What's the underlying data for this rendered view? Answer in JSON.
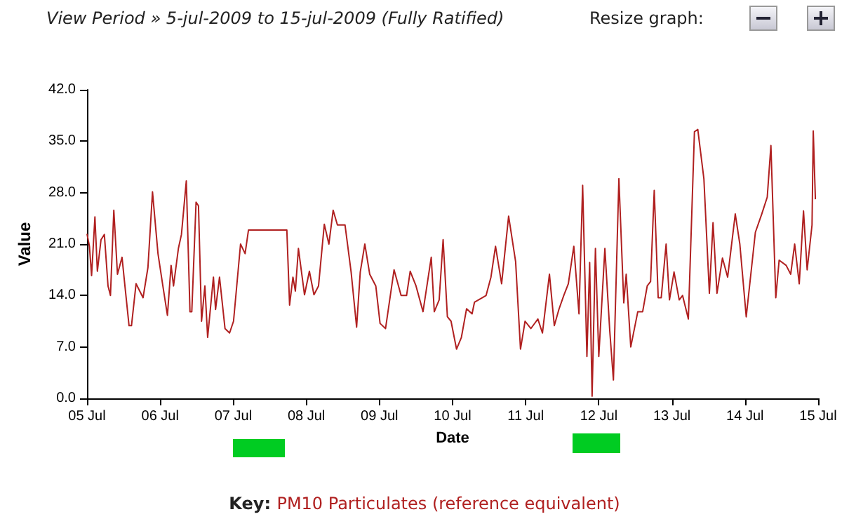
{
  "chart_data": {
    "type": "line",
    "title": "View Period » 5-jul-2009 to 15-jul-2009 (Fully Ratified)",
    "annotations": [
      "Resize graph:"
    ],
    "xlabel": "Date",
    "ylabel": "Value",
    "legend": "bottom",
    "legend_title": "Key:",
    "grid": false,
    "marker": "none",
    "line_style": "solid",
    "xlim": [
      "2009-07-05",
      "2009-07-15"
    ],
    "xticks": [
      {
        "value": "2009-07-05",
        "label": "05 Jul"
      },
      {
        "value": "2009-07-06",
        "label": "06 Jul"
      },
      {
        "value": "2009-07-07",
        "label": "07 Jul"
      },
      {
        "value": "2009-07-08",
        "label": "08 Jul"
      },
      {
        "value": "2009-07-09",
        "label": "09 Jul"
      },
      {
        "value": "2009-07-10",
        "label": "10 Jul"
      },
      {
        "value": "2009-07-11",
        "label": "11 Jul"
      },
      {
        "value": "2009-07-12",
        "label": "12 Jul"
      },
      {
        "value": "2009-07-13",
        "label": "13 Jul"
      },
      {
        "value": "2009-07-14",
        "label": "14 Jul"
      },
      {
        "value": "2009-07-15",
        "label": "15 Jul"
      }
    ],
    "ylim": [
      0,
      42
    ],
    "yticks": [
      {
        "value": 0,
        "label": "0.0"
      },
      {
        "value": 7,
        "label": "7.0"
      },
      {
        "value": 14,
        "label": "14.0"
      },
      {
        "value": 21,
        "label": "21.0"
      },
      {
        "value": 28,
        "label": "28.0"
      },
      {
        "value": 35,
        "label": "35.0"
      },
      {
        "value": 42,
        "label": "42.0"
      }
    ],
    "series": [
      {
        "name": "PM10 Particulates (reference equivalent)",
        "color": "#b02020",
        "x": [
          "2009-07-05T00:00",
          "2009-07-05T00:48",
          "2009-07-05T01:30",
          "2009-07-05T02:36",
          "2009-07-05T03:24",
          "2009-07-05T04:36",
          "2009-07-05T05:42",
          "2009-07-05T06:54",
          "2009-07-05T07:42",
          "2009-07-05T08:48",
          "2009-07-05T10:00",
          "2009-07-05T11:30",
          "2009-07-05T12:18",
          "2009-07-05T13:48",
          "2009-07-05T14:36",
          "2009-07-05T16:06",
          "2009-07-05T18:24",
          "2009-07-05T20:00",
          "2009-07-05T21:30",
          "2009-07-05T23:18",
          "2009-07-06T00:54",
          "2009-07-06T02:24",
          "2009-07-06T03:36",
          "2009-07-06T04:24",
          "2009-07-06T06:00",
          "2009-07-06T07:00",
          "2009-07-06T08:36",
          "2009-07-06T09:48",
          "2009-07-06T10:24",
          "2009-07-06T11:48",
          "2009-07-06T12:36",
          "2009-07-06T13:36",
          "2009-07-06T14:42",
          "2009-07-06T15:36",
          "2009-07-06T17:30",
          "2009-07-06T18:12",
          "2009-07-06T19:30",
          "2009-07-06T21:18",
          "2009-07-06T22:48",
          "2009-07-07T00:06",
          "2009-07-07T02:24",
          "2009-07-07T03:54",
          "2009-07-07T05:00",
          "2009-07-07T17:36",
          "2009-07-07T18:30",
          "2009-07-07T19:36",
          "2009-07-07T20:24",
          "2009-07-07T21:24",
          "2009-07-07T23:24",
          "2009-07-08T01:00",
          "2009-07-08T02:30",
          "2009-07-08T04:00",
          "2009-07-08T05:54",
          "2009-07-08T07:24",
          "2009-07-08T08:48",
          "2009-07-08T10:12",
          "2009-07-08T12:42",
          "2009-07-08T14:42",
          "2009-07-08T16:30",
          "2009-07-08T17:42",
          "2009-07-08T19:12",
          "2009-07-08T20:48",
          "2009-07-08T22:48",
          "2009-07-09T00:12",
          "2009-07-09T02:00",
          "2009-07-09T04:48",
          "2009-07-09T07:06",
          "2009-07-09T08:54",
          "2009-07-09T10:06",
          "2009-07-09T12:00",
          "2009-07-09T14:18",
          "2009-07-09T17:00",
          "2009-07-09T18:00",
          "2009-07-09T19:36",
          "2009-07-09T20:54",
          "2009-07-09T22:18",
          "2009-07-09T23:30",
          "2009-07-10T01:18",
          "2009-07-10T02:54",
          "2009-07-10T04:36",
          "2009-07-10T06:24",
          "2009-07-10T07:12",
          "2009-07-10T11:00",
          "2009-07-10T12:36",
          "2009-07-10T14:06",
          "2009-07-10T16:06",
          "2009-07-10T18:24",
          "2009-07-10T20:42",
          "2009-07-10T22:18",
          "2009-07-10T23:48",
          "2009-07-11T01:42",
          "2009-07-11T04:00",
          "2009-07-11T05:30",
          "2009-07-11T07:48",
          "2009-07-11T09:24",
          "2009-07-11T10:54",
          "2009-07-11T12:30",
          "2009-07-11T14:00",
          "2009-07-11T15:48",
          "2009-07-11T17:30",
          "2009-07-11T18:42",
          "2009-07-11T20:06",
          "2009-07-11T21:00",
          "2009-07-11T21:48",
          "2009-07-11T22:54",
          "2009-07-12T00:00",
          "2009-07-12T02:00",
          "2009-07-12T03:36",
          "2009-07-12T04:48",
          "2009-07-12T06:36",
          "2009-07-12T08:12",
          "2009-07-12T09:00",
          "2009-07-12T10:30",
          "2009-07-12T12:48",
          "2009-07-12T14:24",
          "2009-07-12T15:54",
          "2009-07-12T17:00",
          "2009-07-12T18:12",
          "2009-07-12T19:30",
          "2009-07-12T20:30",
          "2009-07-12T22:06",
          "2009-07-12T23:12",
          "2009-07-13T00:42",
          "2009-07-13T02:24",
          "2009-07-13T03:30",
          "2009-07-13T05:24",
          "2009-07-13T07:24",
          "2009-07-13T08:30",
          "2009-07-13T10:30",
          "2009-07-13T12:18",
          "2009-07-13T13:30",
          "2009-07-13T14:48",
          "2009-07-13T16:36",
          "2009-07-13T18:18",
          "2009-07-13T20:48",
          "2009-07-13T22:18",
          "2009-07-14T00:24",
          "2009-07-14T03:24",
          "2009-07-14T05:30",
          "2009-07-14T07:18",
          "2009-07-14T08:30",
          "2009-07-14T10:06",
          "2009-07-14T11:12",
          "2009-07-14T13:30",
          "2009-07-14T15:00",
          "2009-07-14T16:18",
          "2009-07-14T17:48",
          "2009-07-14T19:12",
          "2009-07-14T20:24",
          "2009-07-14T22:00",
          "2009-07-14T22:24",
          "2009-07-14T23:06"
        ],
        "values": [
          22.4,
          20.7,
          16.7,
          24.7,
          17.3,
          21.6,
          22.3,
          15.3,
          14.0,
          25.6,
          16.9,
          19.2,
          15.9,
          9.9,
          9.9,
          15.6,
          13.7,
          17.8,
          28.1,
          19.7,
          15.3,
          11.3,
          18.1,
          15.3,
          20.4,
          22.3,
          29.6,
          11.8,
          11.8,
          26.7,
          26.2,
          10.5,
          15.3,
          8.3,
          16.5,
          12.1,
          16.5,
          9.5,
          8.9,
          10.5,
          21.0,
          19.7,
          22.9,
          22.9,
          12.7,
          16.5,
          14.6,
          20.4,
          14.1,
          17.3,
          14.1,
          15.3,
          23.7,
          21.0,
          25.6,
          23.6,
          23.6,
          17.2,
          9.7,
          17.2,
          21.0,
          16.9,
          15.3,
          10.2,
          9.5,
          17.5,
          14.0,
          14.0,
          17.3,
          15.3,
          11.8,
          19.2,
          11.8,
          13.4,
          21.6,
          11.1,
          10.5,
          6.7,
          8.3,
          12.2,
          11.5,
          13.1,
          14.0,
          16.5,
          20.7,
          15.6,
          24.8,
          18.6,
          6.7,
          10.5,
          9.5,
          10.8,
          8.9,
          16.9,
          9.9,
          12.1,
          14.0,
          15.6,
          20.7,
          11.5,
          29.0,
          5.7,
          18.5,
          0.3,
          20.4,
          5.7,
          20.4,
          9.2,
          2.5,
          29.9,
          13.0,
          16.9,
          7.0,
          11.8,
          11.8,
          15.3,
          15.9,
          28.3,
          13.7,
          13.7,
          21.0,
          13.4,
          17.2,
          13.4,
          14.0,
          10.8,
          36.3,
          36.6,
          29.9,
          14.3,
          23.9,
          14.3,
          19.1,
          16.5,
          25.1,
          21.0,
          11.1,
          22.6,
          25.1,
          27.4,
          34.4,
          13.7,
          18.8,
          18.1,
          16.9,
          21.0,
          15.6,
          25.5,
          17.5,
          23.6,
          36.4,
          27.1
        ]
      }
    ]
  }
}
